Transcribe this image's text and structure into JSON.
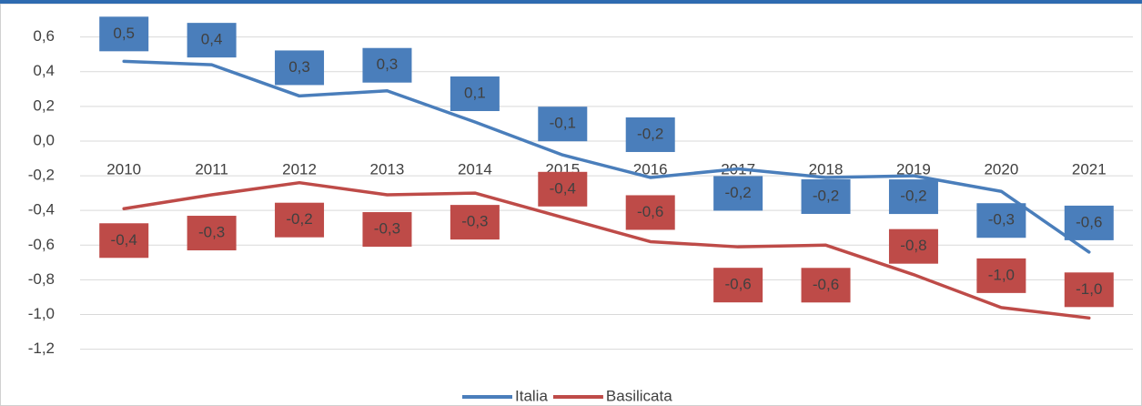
{
  "chart_data": {
    "type": "line",
    "categories": [
      "2010",
      "2011",
      "2012",
      "2013",
      "2014",
      "2015",
      "2016",
      "2017",
      "2018",
      "2019",
      "2020",
      "2021"
    ],
    "series": [
      {
        "name": "Italia",
        "color": "#4a7ebb",
        "values": [
          0.46,
          0.44,
          0.26,
          0.29,
          0.11,
          -0.08,
          -0.21,
          -0.16,
          -0.21,
          -0.2,
          -0.29,
          -0.64
        ],
        "value_labels": [
          "0,5",
          "0,4",
          "0,3",
          "0,3",
          "0,1",
          "-0,1",
          "-0,2",
          "-0,2",
          "-0,2",
          "-0,2",
          "-0,3",
          "-0,6"
        ]
      },
      {
        "name": "Basilicata",
        "color": "#be4b48",
        "values": [
          -0.39,
          -0.31,
          -0.24,
          -0.31,
          -0.3,
          -0.44,
          -0.58,
          -0.61,
          -0.6,
          -0.77,
          -0.96,
          -1.02
        ],
        "value_labels": [
          "-0,4",
          "-0,3",
          "-0,2",
          "-0,3",
          "-0,3",
          "-0,4",
          "-0,6",
          "-0,6",
          "-0,6",
          "-0,8",
          "-1,0",
          "-1,0"
        ]
      }
    ],
    "ylim": [
      -1.4,
      0.7
    ],
    "yticks": [
      {
        "value": 0.6,
        "label": "0,6"
      },
      {
        "value": 0.4,
        "label": "0,4"
      },
      {
        "value": 0.2,
        "label": "0,2"
      },
      {
        "value": 0,
        "label": "0,0"
      },
      {
        "value": -0.2,
        "label": "-0,2"
      },
      {
        "value": -0.4,
        "label": "-0,4"
      },
      {
        "value": -0.6,
        "label": "-0,6"
      },
      {
        "value": -0.8,
        "label": "-0,8"
      },
      {
        "value": -1,
        "label": "-1,0"
      },
      {
        "value": -1.2,
        "label": "-1,2"
      }
    ],
    "grid": true,
    "legend": "bottom"
  }
}
